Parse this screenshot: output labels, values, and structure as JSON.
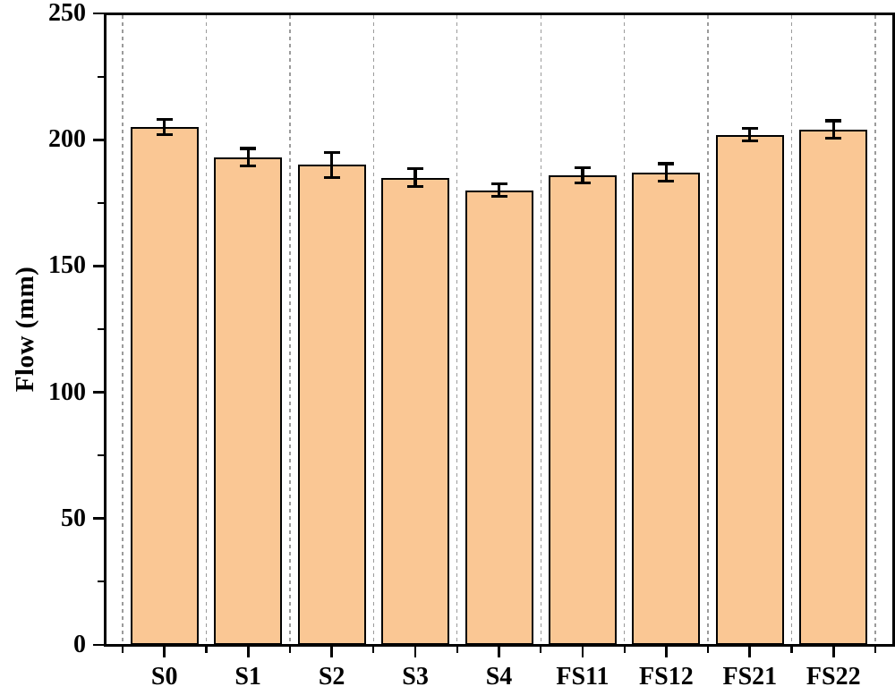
{
  "chart_data": {
    "type": "bar",
    "title": "",
    "ylabel": "Flow (mm)",
    "xlabel": "",
    "categories": [
      "S0",
      "S1",
      "S2",
      "S3",
      "S4",
      "FS11",
      "FS12",
      "FS21",
      "FS22"
    ],
    "values": [
      205,
      193,
      190,
      185,
      180,
      186,
      187,
      202,
      204
    ],
    "errors": [
      3,
      3.5,
      5,
      3.5,
      2.5,
      3,
      3.5,
      2.5,
      3.5
    ],
    "ylim": [
      0,
      250
    ],
    "y_major_ticks": [
      0,
      50,
      100,
      150,
      200,
      250
    ],
    "y_minor_ticks": [
      25,
      75,
      125,
      175,
      225
    ],
    "grid": {
      "vertical_dashed": true,
      "color": "#9b9b9b"
    },
    "legend_position": "none",
    "bar_fill": "#FAC794",
    "bar_border": "#000000",
    "error_color": "#000000",
    "axis_color": "#000000"
  }
}
